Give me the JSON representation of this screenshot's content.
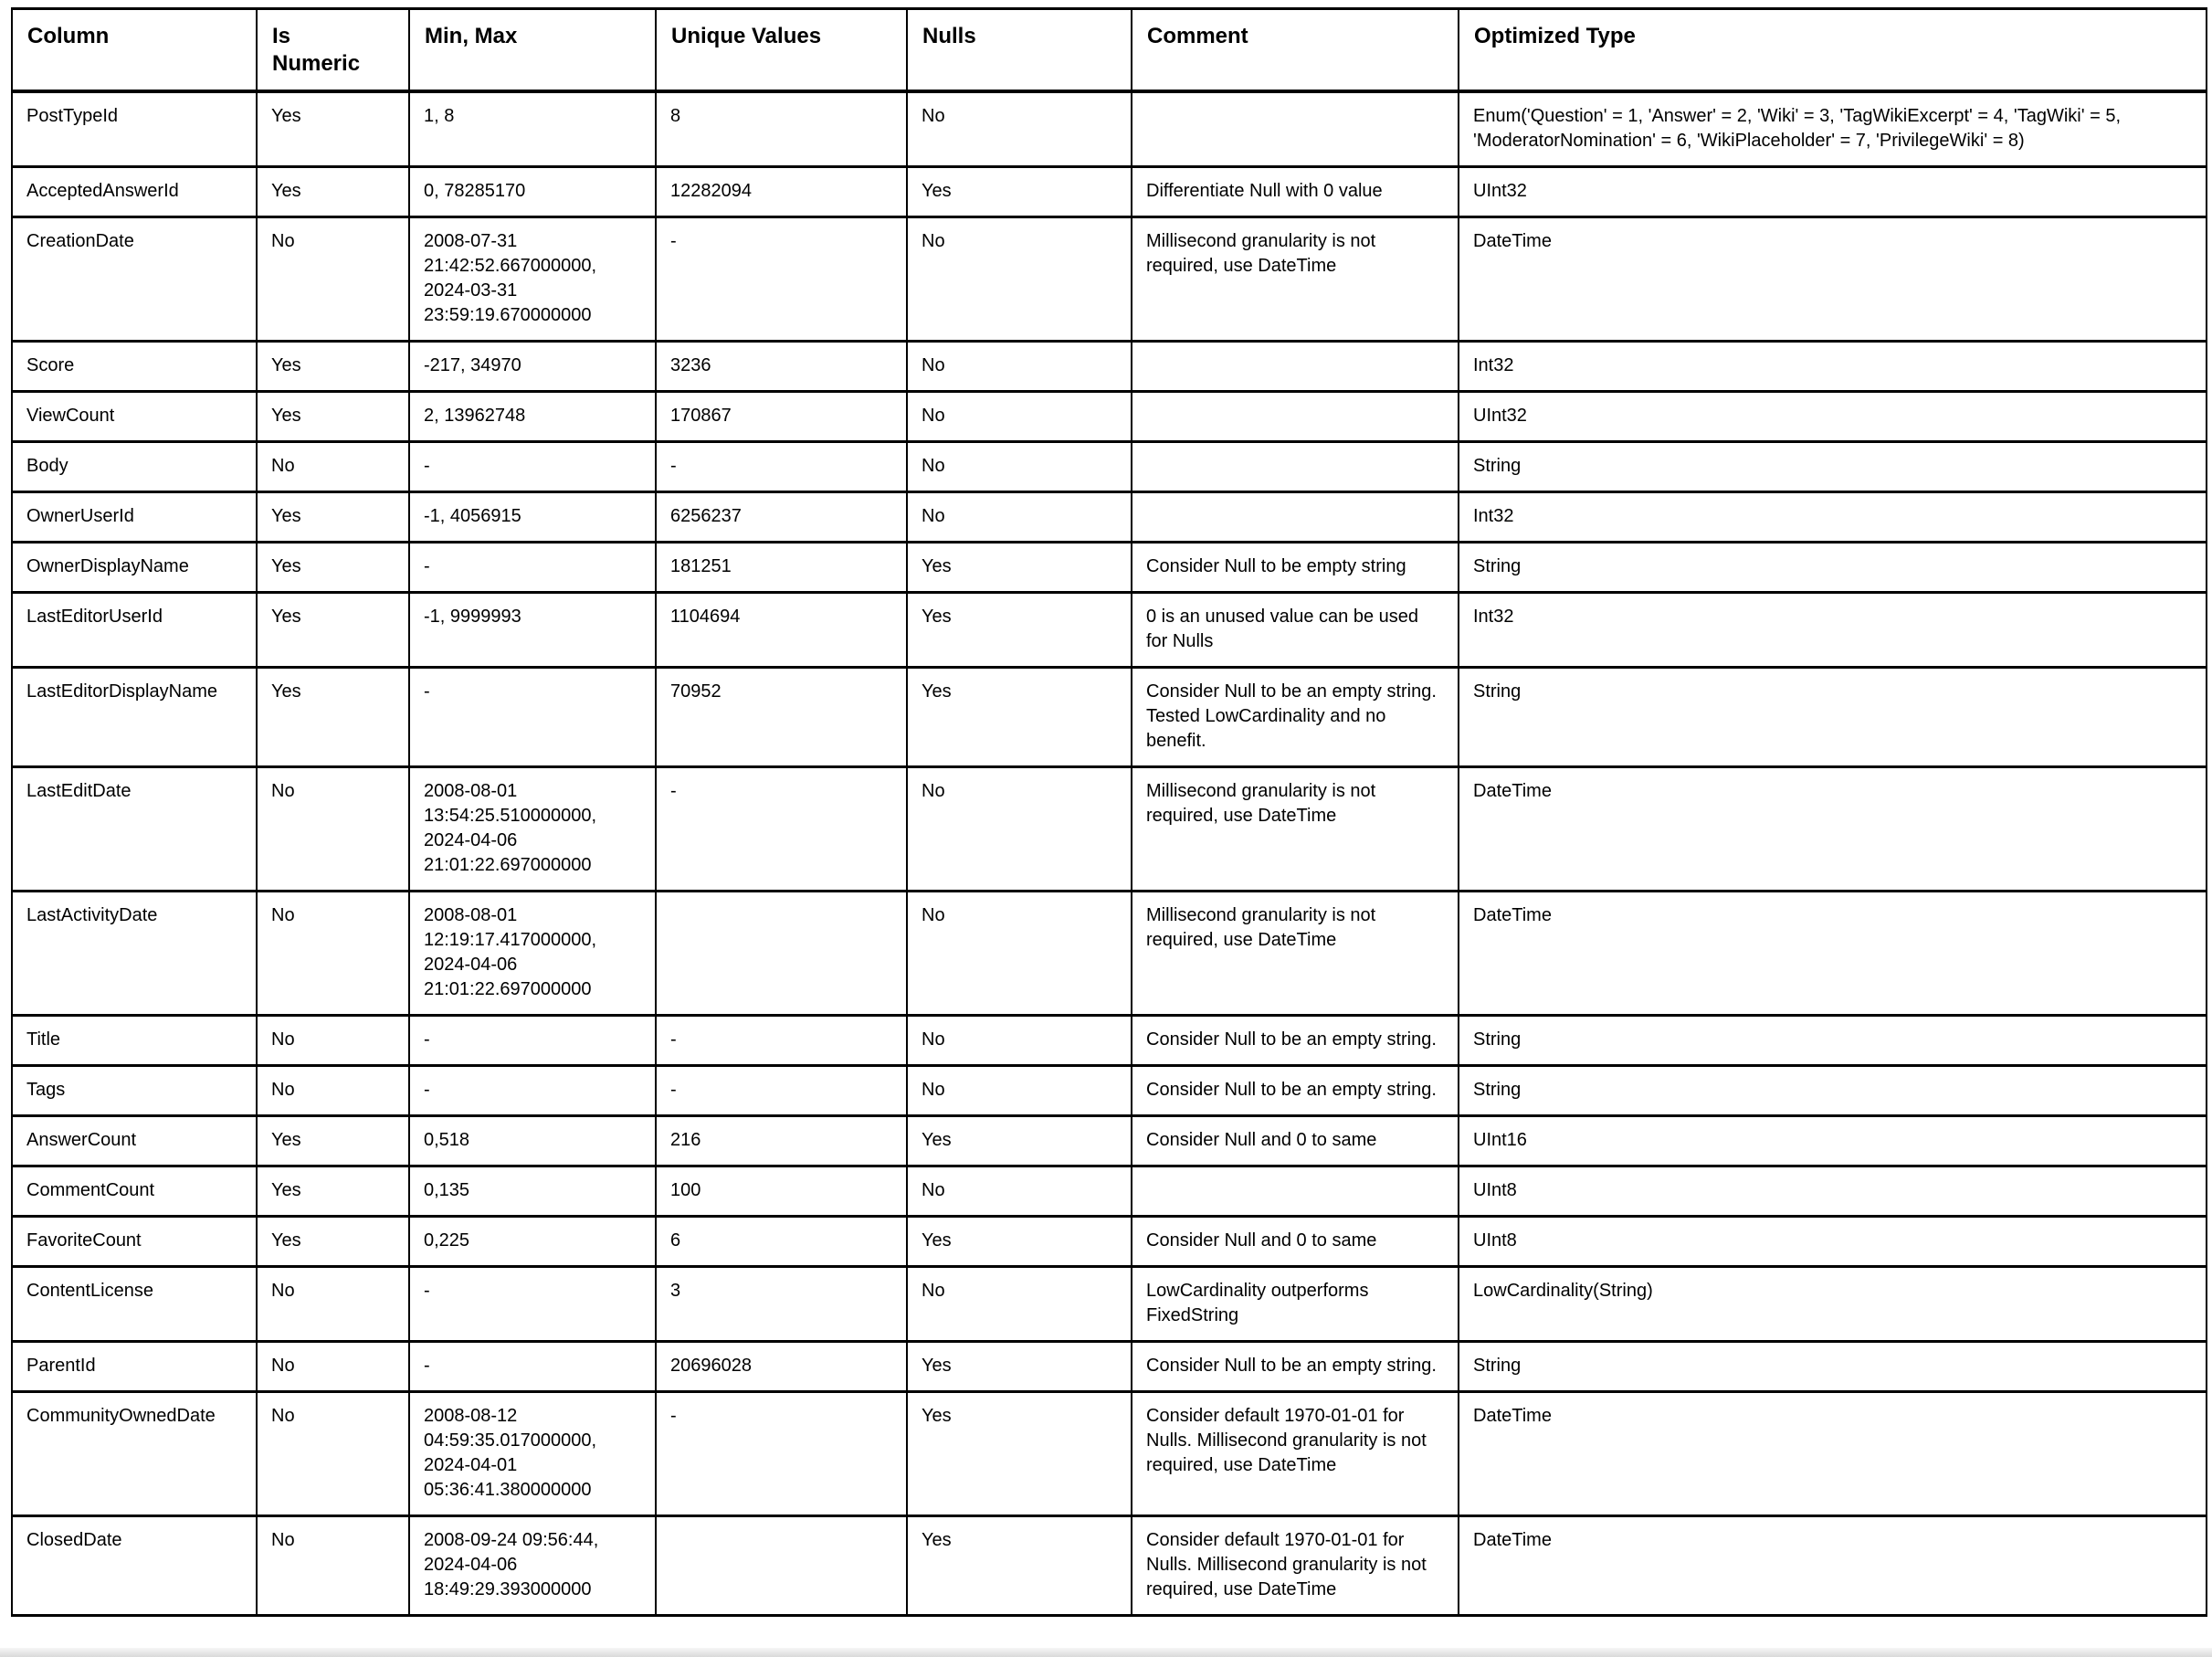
{
  "colors": {
    "text": "#000000",
    "border": "#000000",
    "background": "#ffffff",
    "window_edge": "#d9d9d9"
  },
  "table": {
    "headers": [
      "Column",
      "Is Numeric",
      "Min, Max",
      "Unique Values",
      "Nulls",
      "Comment",
      "Optimized Type"
    ],
    "rows": [
      {
        "column": "PostTypeId",
        "is_numeric": "Yes",
        "min_max": "1, 8",
        "unique_values": "8",
        "nulls": "No",
        "comment": "",
        "optimized_type": "Enum('Question' = 1, 'Answer' = 2, 'Wiki' = 3, 'TagWikiExcerpt' = 4, 'TagWiki' = 5, 'ModeratorNomination' = 6, 'WikiPlaceholder' = 7, 'PrivilegeWiki' = 8)"
      },
      {
        "column": "AcceptedAnswerId",
        "is_numeric": "Yes",
        "min_max": "0, 78285170",
        "unique_values": "12282094",
        "nulls": "Yes",
        "comment": "Differentiate Null with 0 value",
        "optimized_type": "UInt32"
      },
      {
        "column": "CreationDate",
        "is_numeric": "No",
        "min_max": "2008-07-31 21:42:52.667000000, 2024-03-31 23:59:19.670000000",
        "unique_values": "-",
        "nulls": "No",
        "comment": "Millisecond granularity is not required, use DateTime",
        "optimized_type": "DateTime"
      },
      {
        "column": "Score",
        "is_numeric": "Yes",
        "min_max": "-217, 34970",
        "unique_values": "3236",
        "nulls": "No",
        "comment": "",
        "optimized_type": "Int32"
      },
      {
        "column": "ViewCount",
        "is_numeric": "Yes",
        "min_max": "2, 13962748",
        "unique_values": "170867",
        "nulls": "No",
        "comment": "",
        "optimized_type": "UInt32"
      },
      {
        "column": "Body",
        "is_numeric": "No",
        "min_max": "-",
        "unique_values": "-",
        "nulls": "No",
        "comment": "",
        "optimized_type": "String"
      },
      {
        "column": "OwnerUserId",
        "is_numeric": "Yes",
        "min_max": "-1, 4056915",
        "unique_values": "6256237",
        "nulls": "No",
        "comment": "",
        "optimized_type": "Int32"
      },
      {
        "column": "OwnerDisplayName",
        "is_numeric": "Yes",
        "min_max": "-",
        "unique_values": "181251",
        "nulls": "Yes",
        "comment": "Consider Null to be empty string",
        "optimized_type": "String"
      },
      {
        "column": "LastEditorUserId",
        "is_numeric": "Yes",
        "min_max": "-1, 9999993",
        "unique_values": "1104694",
        "nulls": "Yes",
        "comment": "0 is an unused value can be used for Nulls",
        "optimized_type": "Int32"
      },
      {
        "column": "LastEditorDisplayName",
        "is_numeric": "Yes",
        "min_max": "-",
        "unique_values": "70952",
        "nulls": "Yes",
        "comment": "Consider Null to be an empty string. Tested LowCardinality and no benefit.",
        "optimized_type": "String"
      },
      {
        "column": "LastEditDate",
        "is_numeric": "No",
        "min_max": "2008-08-01 13:54:25.510000000, 2024-04-06 21:01:22.697000000",
        "unique_values": "-",
        "nulls": "No",
        "comment": "Millisecond granularity is not required, use DateTime",
        "optimized_type": "DateTime"
      },
      {
        "column": "LastActivityDate",
        "is_numeric": "No",
        "min_max": "2008-08-01 12:19:17.417000000, 2024-04-06 21:01:22.697000000",
        "unique_values": "",
        "nulls": "No",
        "comment": "Millisecond granularity is not required, use DateTime",
        "optimized_type": "DateTime"
      },
      {
        "column": "Title",
        "is_numeric": "No",
        "min_max": "-",
        "unique_values": "-",
        "nulls": "No",
        "comment": "Consider Null to be an empty string.",
        "optimized_type": "String"
      },
      {
        "column": "Tags",
        "is_numeric": "No",
        "min_max": "-",
        "unique_values": "-",
        "nulls": "No",
        "comment": "Consider Null to be an empty string.",
        "optimized_type": "String"
      },
      {
        "column": "AnswerCount",
        "is_numeric": "Yes",
        "min_max": "0,518",
        "unique_values": "216",
        "nulls": "Yes",
        "comment": "Consider Null and 0 to same",
        "optimized_type": "UInt16"
      },
      {
        "column": "CommentCount",
        "is_numeric": "Yes",
        "min_max": "0,135",
        "unique_values": "100",
        "nulls": "No",
        "comment": "",
        "optimized_type": "UInt8"
      },
      {
        "column": "FavoriteCount",
        "is_numeric": "Yes",
        "min_max": "0,225",
        "unique_values": "6",
        "nulls": "Yes",
        "comment": "Consider Null and 0 to same",
        "optimized_type": "UInt8"
      },
      {
        "column": "ContentLicense",
        "is_numeric": "No",
        "min_max": "-",
        "unique_values": "3",
        "nulls": "No",
        "comment": "LowCardinality outperforms FixedString",
        "optimized_type": "LowCardinality(String)"
      },
      {
        "column": "ParentId",
        "is_numeric": "No",
        "min_max": "-",
        "unique_values": "20696028",
        "nulls": "Yes",
        "comment": "Consider Null to be an empty string.",
        "optimized_type": "String"
      },
      {
        "column": "CommunityOwnedDate",
        "is_numeric": "No",
        "min_max": "2008-08-12 04:59:35.017000000, 2024-04-01 05:36:41.380000000",
        "unique_values": "-",
        "nulls": "Yes",
        "comment": "Consider default 1970-01-01 for Nulls. Millisecond granularity is not required, use DateTime",
        "optimized_type": "DateTime"
      },
      {
        "column": "ClosedDate",
        "is_numeric": "No",
        "min_max": "2008-09-24 09:56:44, 2024-04-06 18:49:29.393000000",
        "unique_values": "",
        "nulls": "Yes",
        "comment": "Consider default 1970-01-01 for Nulls. Millisecond granularity is not required, use DateTime",
        "optimized_type": "DateTime"
      }
    ]
  }
}
